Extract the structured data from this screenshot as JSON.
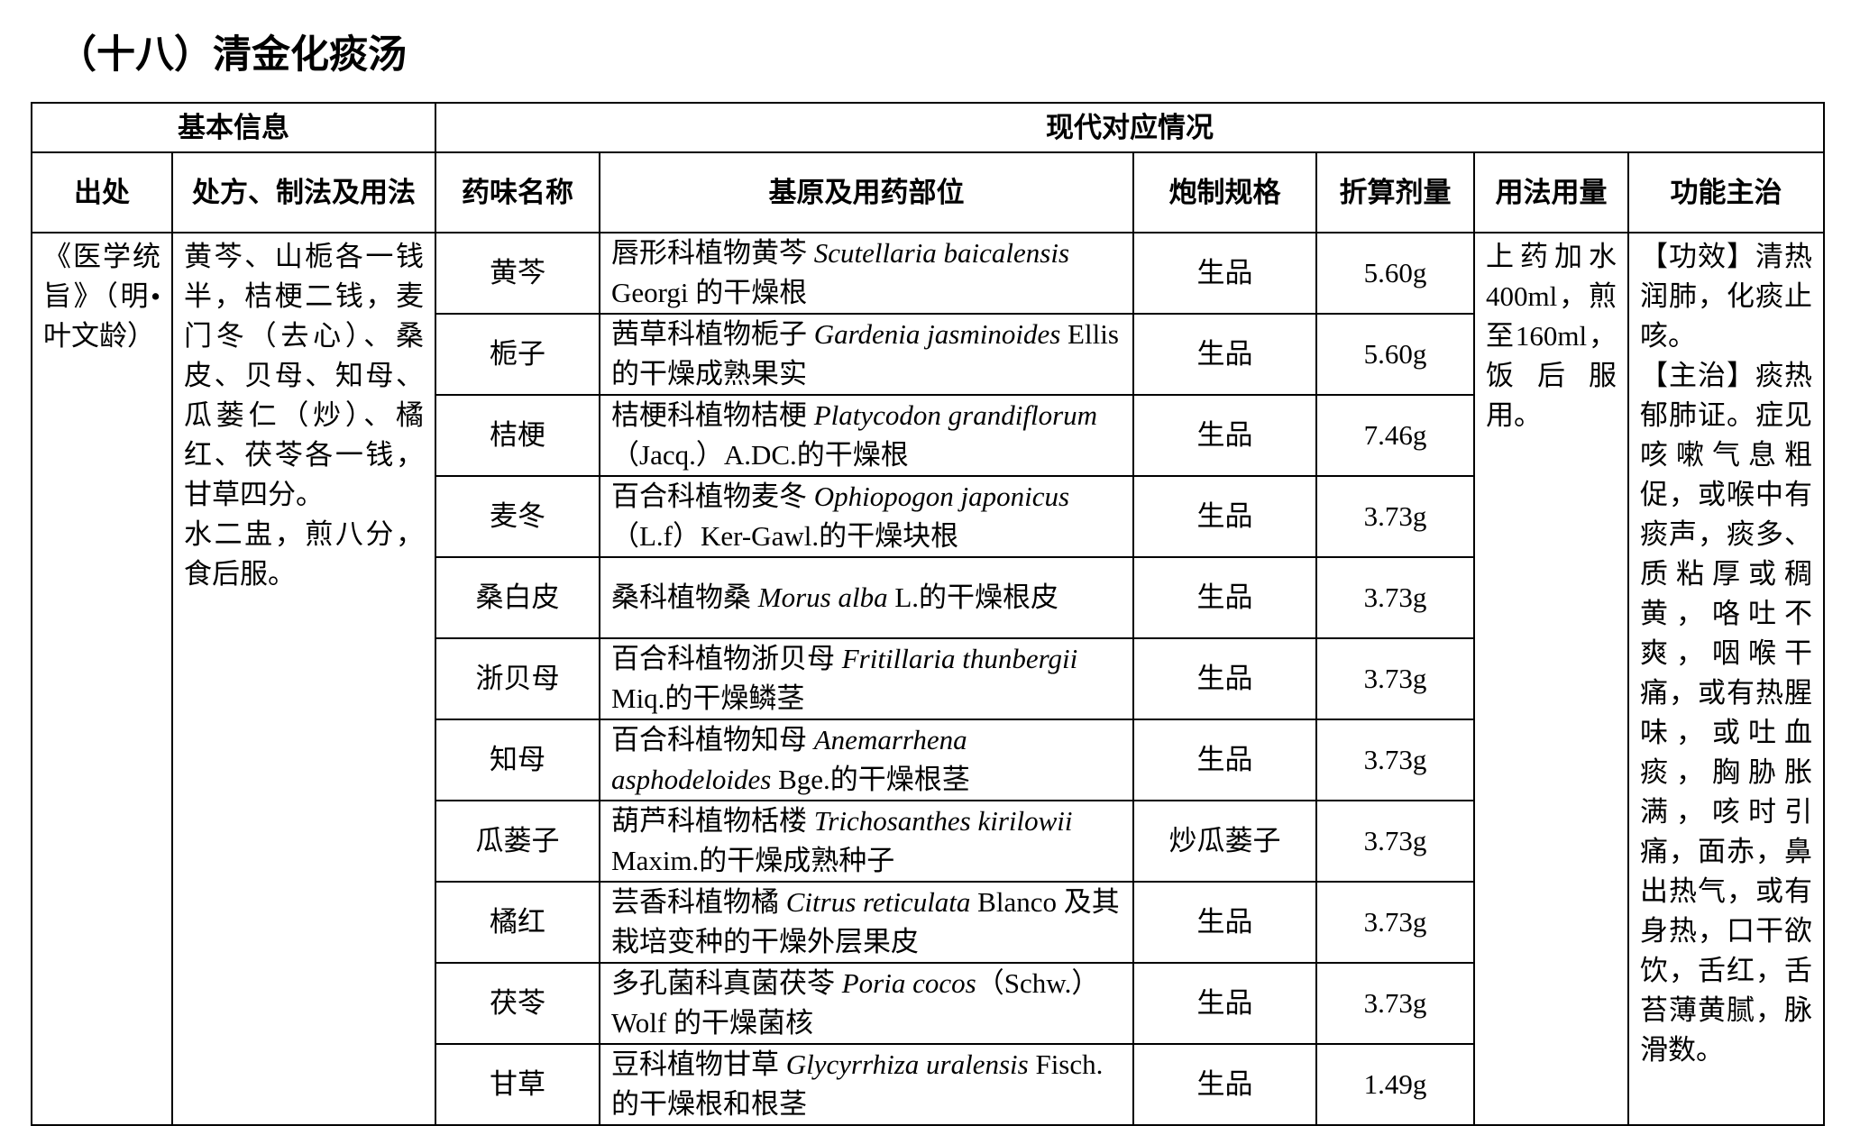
{
  "title": "（十八）清金化痰汤",
  "header": {
    "basic": "基本信息",
    "modern": "现代对应情况",
    "columns": [
      "出处",
      "处方、制法及用法",
      "药味名称",
      "基原及用药部位",
      "炮制规格",
      "折算剂量",
      "用法用量",
      "功能主治"
    ]
  },
  "source": "《医学统旨》（明•叶文龄）",
  "prescription": [
    "黄芩、山栀各一钱半，桔梗二钱，麦门冬（去心）、桑皮、贝母、知母、瓜蒌仁（炒）、橘红、茯苓各一钱，甘草四分。",
    "水二盅，煎八分，食后服。"
  ],
  "usage": "上药加水400ml，煎至160ml，饭后服用。",
  "function": [
    "【功效】清热润肺，化痰止咳。",
    "【主治】痰热郁肺证。症见咳嗽气息粗促，或喉中有痰声，痰多、质粘厚或稠黄，咯吐不爽，咽喉干痛，或有热腥味，或吐血痰，胸胁胀满，咳时引痛，面赤，鼻出热气，或有身热，口干欲饮，舌红，舌苔薄黄腻，脉滑数。"
  ],
  "herbs": [
    {
      "name": "黄芩",
      "origin": {
        "pre": "唇形科植物黄芩 ",
        "latin": "Scutellaria baicalensis",
        "post": " Georgi 的干燥根"
      },
      "processing": "生品",
      "dose": "5.60g"
    },
    {
      "name": "栀子",
      "origin": {
        "pre": "茜草科植物栀子 ",
        "latin": "Gardenia jasminoides",
        "post": " Ellis 的干燥成熟果实"
      },
      "processing": "生品",
      "dose": "5.60g"
    },
    {
      "name": "桔梗",
      "origin": {
        "pre": "桔梗科植物桔梗 ",
        "latin": "Platycodon grandiflorum",
        "post": "（Jacq.）A.DC.的干燥根"
      },
      "processing": "生品",
      "dose": "7.46g"
    },
    {
      "name": "麦冬",
      "origin": {
        "pre": "百合科植物麦冬 ",
        "latin": "Ophiopogon japonicus",
        "post": "（L.f）Ker-Gawl.的干燥块根"
      },
      "processing": "生品",
      "dose": "3.73g"
    },
    {
      "name": "桑白皮",
      "origin": {
        "pre": "桑科植物桑 ",
        "latin": "Morus alba",
        "post": " L.的干燥根皮"
      },
      "processing": "生品",
      "dose": "3.73g"
    },
    {
      "name": "浙贝母",
      "origin": {
        "pre": "百合科植物浙贝母 ",
        "latin": "Fritillaria thunbergii",
        "post": " Miq.的干燥鳞茎"
      },
      "processing": "生品",
      "dose": "3.73g"
    },
    {
      "name": "知母",
      "origin": {
        "pre": "百合科植物知母 ",
        "latin": "Anemarrhena asphodeloides",
        "post": " Bge.的干燥根茎"
      },
      "processing": "生品",
      "dose": "3.73g"
    },
    {
      "name": "瓜蒌子",
      "origin": {
        "pre": "葫芦科植物栝楼 ",
        "latin": "Trichosanthes kirilowii",
        "post": " Maxim.的干燥成熟种子"
      },
      "processing": "炒瓜蒌子",
      "dose": "3.73g"
    },
    {
      "name": "橘红",
      "origin": {
        "pre": "芸香科植物橘 ",
        "latin": "Citrus reticulata",
        "post": " Blanco 及其栽培变种的干燥外层果皮"
      },
      "processing": "生品",
      "dose": "3.73g"
    },
    {
      "name": "茯苓",
      "origin": {
        "pre": "多孔菌科真菌茯苓 ",
        "latin": "Poria cocos",
        "post": "（Schw.）Wolf 的干燥菌核"
      },
      "processing": "生品",
      "dose": "3.73g"
    },
    {
      "name": "甘草",
      "origin": {
        "pre": "豆科植物甘草 ",
        "latin": "Glycyrrhiza uralensis",
        "post": " Fisch. 的干燥根和根茎"
      },
      "processing": "生品",
      "dose": "1.49g"
    }
  ]
}
